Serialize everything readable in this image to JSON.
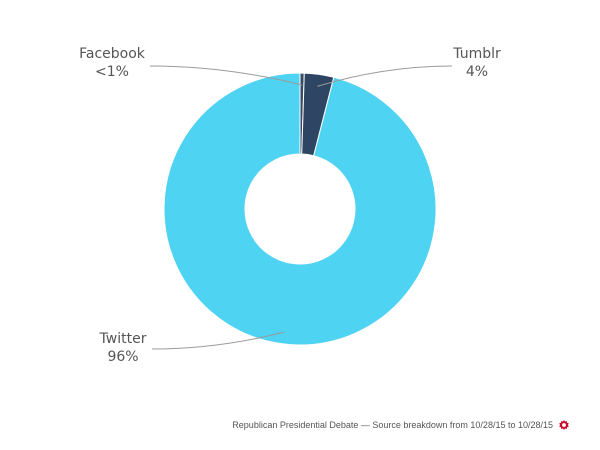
{
  "chart_data": {
    "type": "pie",
    "donut": true,
    "slices": [
      {
        "label": "Facebook",
        "display": "<1%",
        "value": 0.5,
        "color": "#3b4a63"
      },
      {
        "label": "Tumblr",
        "display": "4%",
        "value": 3.5,
        "color": "#2e4663"
      },
      {
        "label": "Twitter",
        "display": "96%",
        "value": 96,
        "color": "#4fd3f2"
      }
    ],
    "legend": "none"
  },
  "footer": {
    "text": "Republican Presidential Debate — Source breakdown from 10/28/15 to 10/28/15",
    "icon": "gear-icon",
    "icon_color": "#c8102e"
  }
}
